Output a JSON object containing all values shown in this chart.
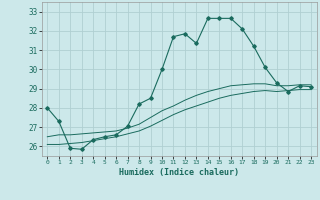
{
  "xlabel": "Humidex (Indice chaleur)",
  "bg_color": "#cce8ea",
  "grid_color": "#b0cfd2",
  "line_color": "#1a6b5e",
  "xlim": [
    -0.5,
    23.5
  ],
  "ylim": [
    25.5,
    33.5
  ],
  "yticks": [
    26,
    27,
    28,
    29,
    30,
    31,
    32,
    33
  ],
  "xticks": [
    0,
    1,
    2,
    3,
    4,
    5,
    6,
    7,
    8,
    9,
    10,
    11,
    12,
    13,
    14,
    15,
    16,
    17,
    18,
    19,
    20,
    21,
    22,
    23
  ],
  "series1_x": [
    0,
    1,
    2,
    3,
    4,
    5,
    6,
    7,
    8,
    9,
    10,
    11,
    12,
    13,
    14,
    15,
    16,
    17,
    18,
    19,
    20,
    21,
    22,
    23
  ],
  "series1_y": [
    28.0,
    27.3,
    25.9,
    25.85,
    26.35,
    26.5,
    26.6,
    27.05,
    28.2,
    28.5,
    30.0,
    31.7,
    31.85,
    31.35,
    32.65,
    32.65,
    32.65,
    32.1,
    31.2,
    30.1,
    29.3,
    28.85,
    29.15,
    29.1
  ],
  "series2_x": [
    0,
    1,
    2,
    3,
    4,
    5,
    6,
    7,
    8,
    9,
    10,
    11,
    12,
    13,
    14,
    15,
    16,
    17,
    18,
    19,
    20,
    21,
    22,
    23
  ],
  "series2_y": [
    26.5,
    26.6,
    26.6,
    26.65,
    26.7,
    26.75,
    26.8,
    26.95,
    27.15,
    27.5,
    27.85,
    28.1,
    28.4,
    28.65,
    28.85,
    29.0,
    29.15,
    29.2,
    29.25,
    29.25,
    29.15,
    29.15,
    29.2,
    29.2
  ],
  "series3_x": [
    0,
    1,
    2,
    3,
    4,
    5,
    6,
    7,
    8,
    9,
    10,
    11,
    12,
    13,
    14,
    15,
    16,
    17,
    18,
    19,
    20,
    21,
    22,
    23
  ],
  "series3_y": [
    26.1,
    26.1,
    26.15,
    26.2,
    26.3,
    26.4,
    26.5,
    26.65,
    26.8,
    27.05,
    27.35,
    27.65,
    27.9,
    28.1,
    28.3,
    28.5,
    28.65,
    28.75,
    28.85,
    28.9,
    28.85,
    28.9,
    28.95,
    28.95
  ]
}
